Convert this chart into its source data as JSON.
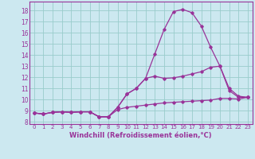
{
  "xlabel": "Windchill (Refroidissement éolien,°C)",
  "bg_color": "#cce8f0",
  "line_color": "#993399",
  "grid_color": "#99cccc",
  "spine_color": "#993399",
  "xlim": [
    -0.5,
    23.5
  ],
  "ylim": [
    7.8,
    18.8
  ],
  "xticks": [
    0,
    1,
    2,
    3,
    4,
    5,
    6,
    7,
    8,
    9,
    10,
    11,
    12,
    13,
    14,
    15,
    16,
    17,
    18,
    19,
    20,
    21,
    22,
    23
  ],
  "yticks": [
    8,
    9,
    10,
    11,
    12,
    13,
    14,
    15,
    16,
    17,
    18
  ],
  "series": [
    [
      8.8,
      8.7,
      8.85,
      8.9,
      8.85,
      8.9,
      8.9,
      8.45,
      8.45,
      9.3,
      10.5,
      11.0,
      11.9,
      14.1,
      16.3,
      17.9,
      18.1,
      17.8,
      16.6,
      14.7,
      13.0,
      10.8,
      10.2,
      10.2
    ],
    [
      8.8,
      8.7,
      8.85,
      8.9,
      8.85,
      8.9,
      8.9,
      8.45,
      8.45,
      9.3,
      10.5,
      11.0,
      11.9,
      12.1,
      11.9,
      11.95,
      12.1,
      12.3,
      12.5,
      12.9,
      13.0,
      11.0,
      10.3,
      10.2
    ],
    [
      8.8,
      8.7,
      8.85,
      8.9,
      8.85,
      8.9,
      8.9,
      8.45,
      8.45,
      9.1,
      9.3,
      9.4,
      9.5,
      9.6,
      9.7,
      9.75,
      9.8,
      9.85,
      9.9,
      9.95,
      10.1,
      10.1,
      10.05,
      10.2
    ]
  ],
  "xlabel_fontsize": 6.0,
  "tick_fontsize": 5.5,
  "xlabel_fontweight": "bold"
}
